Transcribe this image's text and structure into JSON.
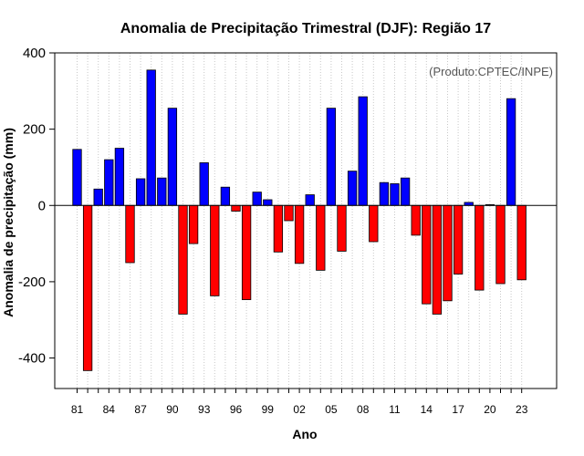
{
  "chart_data": {
    "type": "bar",
    "title": "Anomalia de Precipitação Trimestral (DJF): Região 17",
    "xlabel": "Ano",
    "ylabel": "Anomalia de precipitação (mm)",
    "credit": "(Produto:CPTEC/INPE)",
    "ylim": [
      -480,
      400
    ],
    "yticks": [
      -400,
      -200,
      0,
      200,
      400
    ],
    "xticks": [
      {
        "year": 1981,
        "label": "81"
      },
      {
        "year": 1984,
        "label": "84"
      },
      {
        "year": 1987,
        "label": "87"
      },
      {
        "year": 1990,
        "label": "90"
      },
      {
        "year": 1993,
        "label": "93"
      },
      {
        "year": 1996,
        "label": "96"
      },
      {
        "year": 1999,
        "label": "99"
      },
      {
        "year": 2002,
        "label": "02"
      },
      {
        "year": 2005,
        "label": "05"
      },
      {
        "year": 2008,
        "label": "08"
      },
      {
        "year": 2011,
        "label": "11"
      },
      {
        "year": 2014,
        "label": "14"
      },
      {
        "year": 2017,
        "label": "17"
      },
      {
        "year": 2020,
        "label": "20"
      },
      {
        "year": 2023,
        "label": "23"
      }
    ],
    "positive_color": "#0000ff",
    "negative_color": "#ff0000",
    "grid": true,
    "x": [
      1981,
      1982,
      1983,
      1984,
      1985,
      1986,
      1987,
      1988,
      1989,
      1990,
      1991,
      1992,
      1993,
      1994,
      1995,
      1996,
      1997,
      1998,
      1999,
      2000,
      2001,
      2002,
      2003,
      2004,
      2005,
      2006,
      2007,
      2008,
      2009,
      2010,
      2011,
      2012,
      2013,
      2014,
      2015,
      2016,
      2017,
      2018,
      2019,
      2020,
      2021,
      2022,
      2023
    ],
    "values": [
      147,
      -433,
      43,
      120,
      150,
      -150,
      70,
      355,
      72,
      255,
      -285,
      -100,
      112,
      -237,
      48,
      -15,
      -247,
      35,
      15,
      -122,
      -40,
      -152,
      28,
      -170,
      255,
      -120,
      90,
      285,
      -95,
      60,
      57,
      72,
      -78,
      -258,
      -285,
      -250,
      -180,
      8,
      -222,
      2,
      -205,
      280,
      -195
    ]
  }
}
